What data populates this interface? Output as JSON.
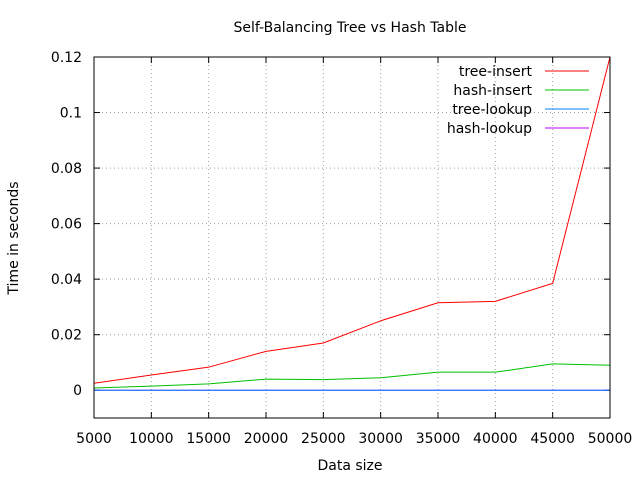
{
  "chart_data": {
    "type": "line",
    "title": "Self-Balancing Tree vs Hash Table",
    "xlabel": "Data size",
    "ylabel": "Time in seconds",
    "xlim": [
      5000,
      50000
    ],
    "ylim": [
      -0.01,
      0.12
    ],
    "xticks": [
      5000,
      10000,
      15000,
      20000,
      25000,
      30000,
      35000,
      40000,
      45000,
      50000
    ],
    "yticks": [
      0,
      0.02,
      0.04,
      0.06,
      0.08,
      0.1,
      0.12
    ],
    "ytick_labels": [
      "0",
      "0.02",
      "0.04",
      "0.06",
      "0.08",
      "0.1",
      "0.12"
    ],
    "grid": true,
    "legend_position": "top-right",
    "x": [
      5000,
      10000,
      15000,
      20000,
      25000,
      30000,
      35000,
      40000,
      45000,
      50000
    ],
    "series": [
      {
        "name": "tree-insert",
        "color": "#ff0000",
        "values": [
          0.0025,
          0.0055,
          0.0083,
          0.014,
          0.017,
          0.025,
          0.0315,
          0.032,
          0.0385,
          0.12
        ]
      },
      {
        "name": "hash-insert",
        "color": "#00c000",
        "values": [
          0.0008,
          0.0015,
          0.0023,
          0.004,
          0.0038,
          0.0045,
          0.0065,
          0.0065,
          0.0095,
          0.009
        ]
      },
      {
        "name": "tree-lookup",
        "color": "#0080ff",
        "values": [
          0,
          0,
          0,
          0,
          0,
          0,
          0,
          0,
          0,
          0
        ]
      },
      {
        "name": "hash-lookup",
        "color": "#c000ff",
        "values": [
          0,
          0,
          0,
          0,
          0,
          0,
          0,
          0,
          0,
          0
        ]
      }
    ]
  }
}
